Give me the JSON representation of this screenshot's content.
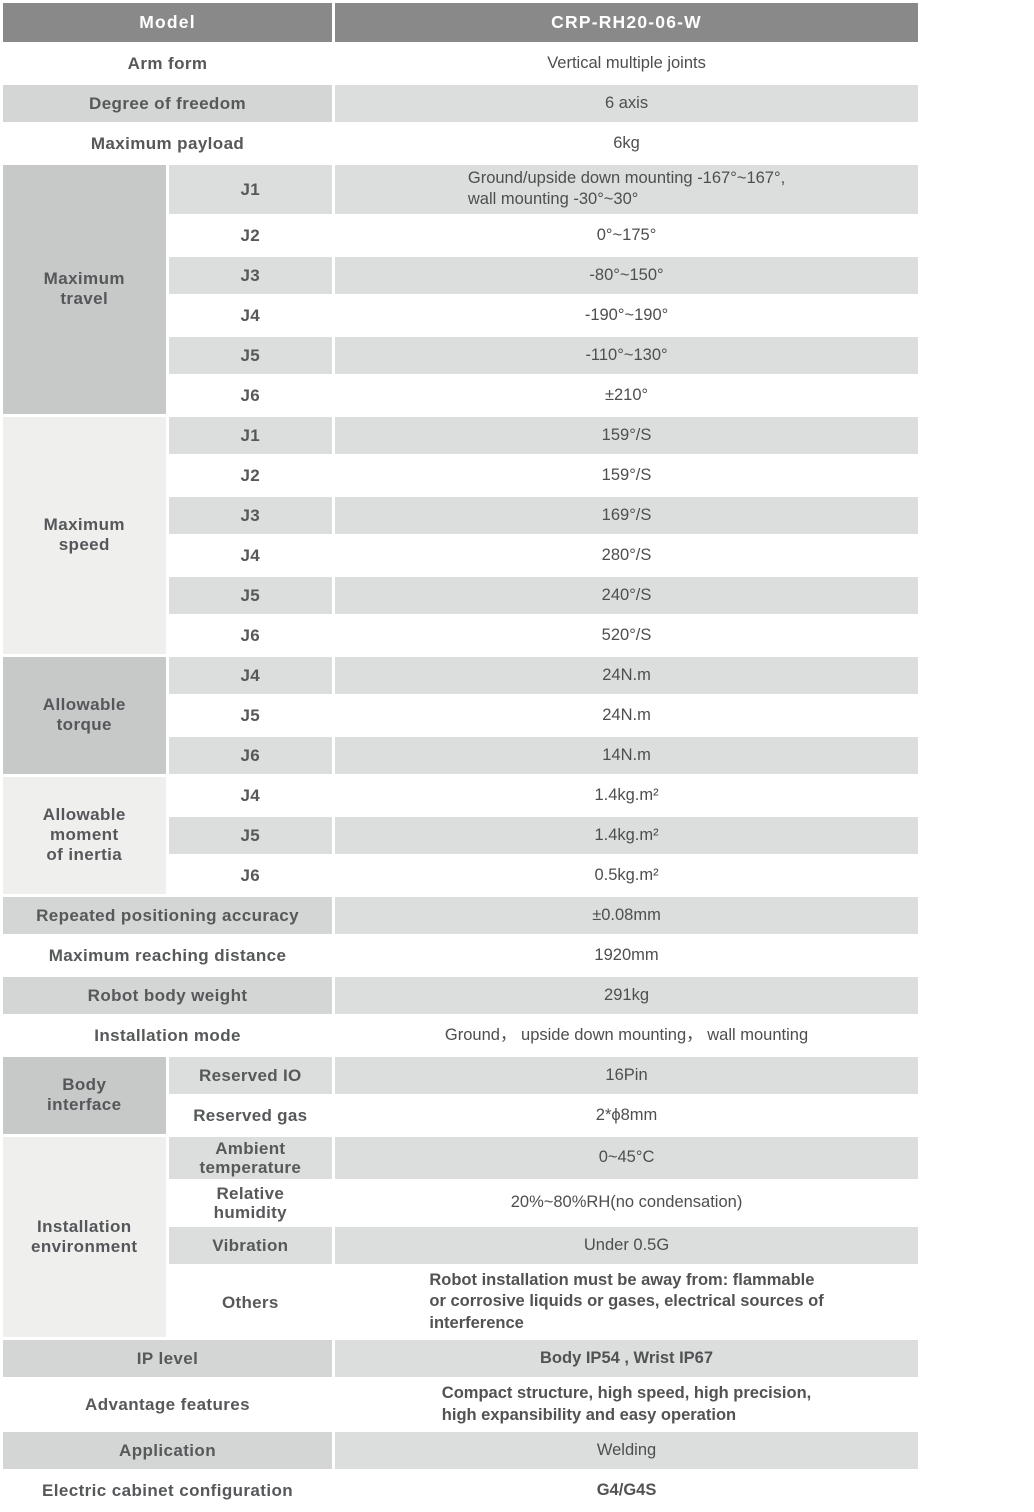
{
  "colors": {
    "header_bg": "#898989",
    "header_text": "#ffffff",
    "stripe_label": "#d4d6d5",
    "stripe_value": "#dcdedd",
    "group_medium": "#c7c9c8",
    "group_light": "#efefee",
    "label_text": "#56585a",
    "value_text": "#4d4e50"
  },
  "sections": [
    {
      "kind": "header",
      "name": "model",
      "label": "Model",
      "value": "CRP-RH20-06-W"
    },
    {
      "kind": "row",
      "name": "arm-form",
      "label": "Arm form",
      "value": "Vertical multiple joints"
    },
    {
      "kind": "row",
      "name": "degree-of-freedom",
      "label": "Degree of freedom",
      "value": "6 axis"
    },
    {
      "kind": "row",
      "name": "maximum-payload",
      "label": "Maximum payload",
      "value": "6kg"
    },
    {
      "kind": "group",
      "name": "maximum-travel",
      "label": "Maximum\ntravel",
      "rows": [
        {
          "sub": "J1",
          "value": "Ground/upside down mounting -167°~167°,\nwall mounting -30°~30°",
          "block": true
        },
        {
          "sub": "J2",
          "value": "0°~175°"
        },
        {
          "sub": "J3",
          "value": "-80°~150°"
        },
        {
          "sub": "J4",
          "value": "-190°~190°"
        },
        {
          "sub": "J5",
          "value": "-110°~130°"
        },
        {
          "sub": "J6",
          "value": "±210°"
        }
      ]
    },
    {
      "kind": "group",
      "name": "maximum-speed",
      "label": "Maximum\nspeed",
      "rows": [
        {
          "sub": "J1",
          "value": "159°/S"
        },
        {
          "sub": "J2",
          "value": "159°/S"
        },
        {
          "sub": "J3",
          "value": "169°/S"
        },
        {
          "sub": "J4",
          "value": "280°/S"
        },
        {
          "sub": "J5",
          "value": "240°/S"
        },
        {
          "sub": "J6",
          "value": "520°/S"
        }
      ]
    },
    {
      "kind": "group",
      "name": "allowable-torque",
      "label": "Allowable\ntorque",
      "rows": [
        {
          "sub": "J4",
          "value": "24N.m"
        },
        {
          "sub": "J5",
          "value": "24N.m"
        },
        {
          "sub": "J6",
          "value": "14N.m"
        }
      ]
    },
    {
      "kind": "group",
      "name": "allowable-moment-of-inertia",
      "label": "Allowable\nmoment\nof inertia",
      "rows": [
        {
          "sub": "J4",
          "value": "1.4kg.m²"
        },
        {
          "sub": "J5",
          "value": "1.4kg.m²"
        },
        {
          "sub": "J6",
          "value": "0.5kg.m²"
        }
      ]
    },
    {
      "kind": "row",
      "name": "repeated-positioning-accuracy",
      "label": "Repeated positioning accuracy",
      "value": "±0.08mm"
    },
    {
      "kind": "row",
      "name": "maximum-reaching-distance",
      "label": "Maximum reaching distance",
      "value": "1920mm"
    },
    {
      "kind": "row",
      "name": "robot-body-weight",
      "label": "Robot body weight",
      "value": "291kg"
    },
    {
      "kind": "row",
      "name": "installation-mode",
      "label": "Installation mode",
      "value": "Ground，  upside down mounting，  wall mounting"
    },
    {
      "kind": "group",
      "name": "body-interface",
      "label": "Body\ninterface",
      "rows": [
        {
          "sub": "Reserved IO",
          "value": "16Pin"
        },
        {
          "sub": "Reserved gas",
          "value": "2*ϕ8mm"
        }
      ]
    },
    {
      "kind": "group",
      "name": "installation-environment",
      "label": "Installation\nenvironment",
      "rows": [
        {
          "sub": "Ambient\ntemperature",
          "value": "0~45°C"
        },
        {
          "sub": "Relative\nhumidity",
          "value": "20%~80%RH(no condensation)"
        },
        {
          "sub": "Vibration",
          "value": "Under 0.5G"
        },
        {
          "sub": "Others",
          "value": "Robot installation must be away from: flammable\nor corrosive liquids or gases, electrical sources of\ninterference",
          "block": true,
          "em": true
        }
      ]
    },
    {
      "kind": "row",
      "name": "ip-level",
      "label": "IP level",
      "value": "Body IP54 , Wrist IP67",
      "em": true
    },
    {
      "kind": "row",
      "name": "advantage-features",
      "label": "Advantage features",
      "value": "Compact structure, high speed, high precision,\nhigh expansibility and easy operation",
      "block": true,
      "em": true
    },
    {
      "kind": "row",
      "name": "application",
      "label": "Application",
      "value": "Welding"
    },
    {
      "kind": "row",
      "name": "electric-cabinet-configuration",
      "label": "Electric cabinet configuration",
      "value": "G4/G4S",
      "em": true
    }
  ]
}
